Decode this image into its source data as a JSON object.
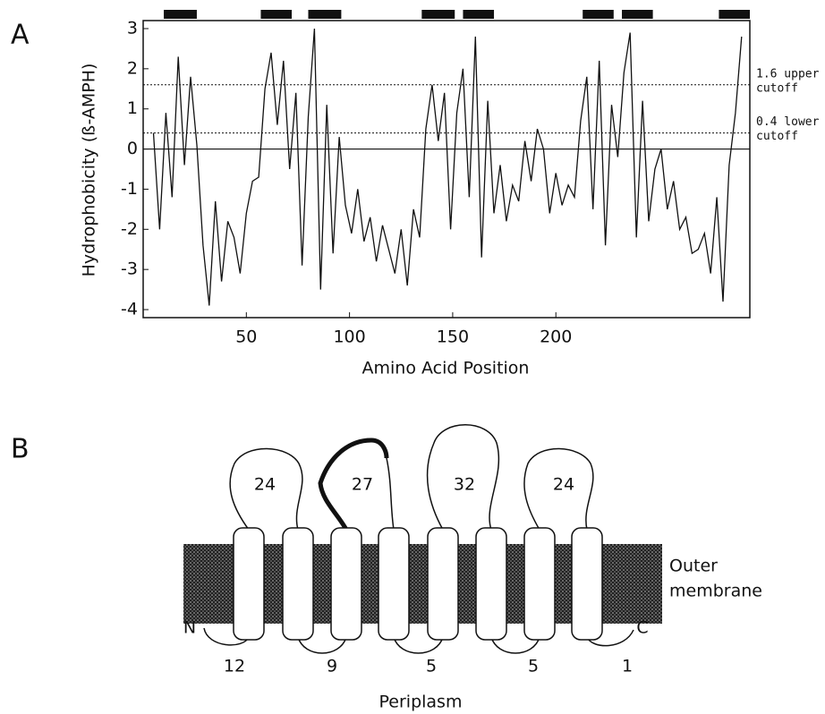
{
  "chart_data": {
    "type": "line",
    "panel_label": "A",
    "xlabel": "Amino Acid Position",
    "ylabel": "Hydrophobicity (ß-AMPH)",
    "xlim": [
      0,
      294
    ],
    "ylim": [
      -4.2,
      3.2
    ],
    "xticks": [
      50,
      100,
      150,
      200
    ],
    "yticks": [
      -4,
      -3,
      -2,
      -1,
      0,
      1,
      2,
      3
    ],
    "color": "#111111",
    "x": [
      5,
      8,
      11,
      14,
      17,
      20,
      23,
      26,
      29,
      32,
      35,
      38,
      41,
      44,
      47,
      50,
      53,
      56,
      59,
      62,
      65,
      68,
      71,
      74,
      77,
      80,
      83,
      86,
      89,
      92,
      95,
      98,
      101,
      104,
      107,
      110,
      113,
      116,
      119,
      122,
      125,
      128,
      131,
      134,
      137,
      140,
      143,
      146,
      149,
      152,
      155,
      158,
      161,
      164,
      167,
      170,
      173,
      176,
      179,
      182,
      185,
      188,
      191,
      194,
      197,
      200,
      203,
      206,
      209,
      212,
      215,
      218,
      221,
      224,
      227,
      230,
      233,
      236,
      239,
      242,
      245,
      248,
      251,
      254,
      257,
      260,
      263,
      266,
      269,
      272,
      275,
      278,
      281,
      284,
      287,
      290
    ],
    "values": [
      0.4,
      -2.0,
      0.9,
      -1.2,
      2.3,
      -0.4,
      1.8,
      0.1,
      -2.4,
      -3.9,
      -1.3,
      -3.3,
      -1.8,
      -2.2,
      -3.1,
      -1.6,
      -0.8,
      -0.7,
      1.5,
      2.4,
      0.6,
      2.2,
      -0.5,
      1.4,
      -2.9,
      0.8,
      3.0,
      -3.5,
      1.1,
      -2.6,
      0.3,
      -1.4,
      -2.1,
      -1.0,
      -2.3,
      -1.7,
      -2.8,
      -1.9,
      -2.5,
      -3.1,
      -2.0,
      -3.4,
      -1.5,
      -2.2,
      0.5,
      1.6,
      0.2,
      1.4,
      -2.0,
      0.9,
      2.0,
      -1.2,
      2.8,
      -2.7,
      1.2,
      -1.6,
      -0.4,
      -1.8,
      -0.9,
      -1.3,
      0.2,
      -0.8,
      0.5,
      0.0,
      -1.6,
      -0.6,
      -1.4,
      -0.9,
      -1.2,
      0.7,
      1.8,
      -1.5,
      2.2,
      -2.4,
      1.1,
      -0.2,
      1.9,
      2.9,
      -2.2,
      1.2,
      -1.8,
      -0.5,
      0.0,
      -1.5,
      -0.8,
      -2.0,
      -1.7,
      -2.6,
      -2.5,
      -2.1,
      -3.1,
      -1.2,
      -3.8,
      -0.4,
      0.9,
      2.8
    ],
    "reference_lines": [
      {
        "value": 1.6,
        "label_lines": [
          "1.6 upper",
          "cutoff"
        ]
      },
      {
        "value": 0.4,
        "label_lines": [
          "0.4 lower",
          "cutoff"
        ]
      }
    ],
    "zero_line": 0,
    "segments": [
      [
        10,
        26
      ],
      [
        57,
        72
      ],
      [
        80,
        96
      ],
      [
        135,
        151
      ],
      [
        155,
        170
      ],
      [
        213,
        228
      ],
      [
        232,
        247
      ],
      [
        279,
        294
      ]
    ]
  },
  "diagram": {
    "panel_label": "B",
    "extracellular_loops": [
      "24",
      "27",
      "32",
      "24"
    ],
    "periplasmic_turns": [
      "12",
      "9",
      "5",
      "5",
      "1"
    ],
    "n_terminus": "N",
    "c_terminus": "C",
    "membrane_label": [
      "Outer",
      "membrane"
    ],
    "periplasm_label": "Periplasm"
  }
}
